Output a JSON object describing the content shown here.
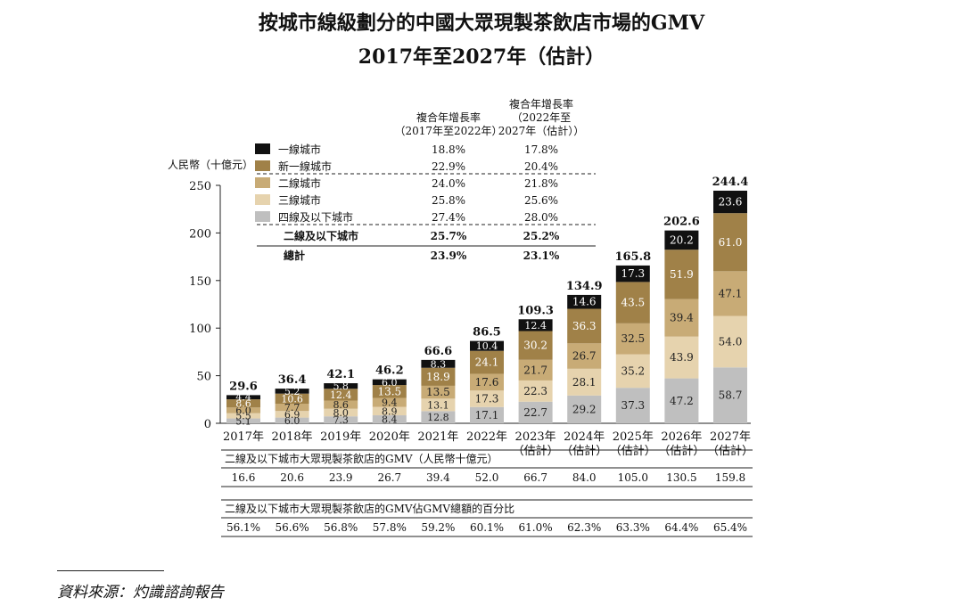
{
  "title_line1": "按城市線級劃分的中國大眾現製茶飲店市場的GMV",
  "title_line2": "2017年至2027年（估計）",
  "source": "資料來源：灼識諮詢報告",
  "colors": {
    "tier1": "#111111",
    "newtier1": "#a08148",
    "tier2": "#c8ab76",
    "tier3": "#e6d3ae",
    "tier4": "#bfbfbf",
    "grid": "#d9d9d9",
    "axis": "#222222"
  },
  "chart_data": {
    "type": "bar",
    "stacked": true,
    "ylabel": "人民幣（十億元）",
    "ylim": [
      0,
      250
    ],
    "yticks": [
      0,
      50,
      100,
      150,
      200,
      250
    ],
    "categories": [
      [
        "2017年"
      ],
      [
        "2018年"
      ],
      [
        "2019年"
      ],
      [
        "2020年"
      ],
      [
        "2021年"
      ],
      [
        "2022年"
      ],
      [
        "2023年",
        "（估計）"
      ],
      [
        "2024年",
        "（估計）"
      ],
      [
        "2025年",
        "（估計）"
      ],
      [
        "2026年",
        "（估計）"
      ],
      [
        "2027年",
        "（估計）"
      ]
    ],
    "series": [
      {
        "name": "四線及以下城市",
        "color_key": "tier4",
        "values": [
          5.1,
          6.0,
          7.3,
          8.4,
          12.8,
          17.1,
          22.7,
          29.2,
          37.3,
          47.2,
          58.7
        ]
      },
      {
        "name": "三線城市",
        "color_key": "tier3",
        "values": [
          5.5,
          6.9,
          8.0,
          8.9,
          13.1,
          17.3,
          22.3,
          28.1,
          35.2,
          43.9,
          54.0
        ]
      },
      {
        "name": "二線城市",
        "color_key": "tier2",
        "values": [
          6.0,
          7.7,
          8.6,
          9.4,
          13.5,
          17.6,
          21.7,
          26.7,
          32.5,
          39.4,
          47.1
        ]
      },
      {
        "name": "新一線城市",
        "color_key": "newtier1",
        "values": [
          8.6,
          10.6,
          12.4,
          13.5,
          18.9,
          24.1,
          30.2,
          36.3,
          43.5,
          51.9,
          61.0
        ]
      },
      {
        "name": "一線城市",
        "color_key": "tier1",
        "values": [
          4.4,
          5.2,
          5.8,
          6.0,
          8.3,
          10.4,
          12.4,
          14.6,
          17.3,
          20.2,
          23.6
        ]
      }
    ],
    "totals": [
      29.6,
      36.4,
      42.1,
      46.2,
      66.6,
      86.5,
      109.3,
      134.9,
      165.8,
      202.6,
      244.4
    ],
    "legend": {
      "header_col1": [
        "複合年增長率",
        "（2017年至2022年）"
      ],
      "header_col2": [
        "複合年增長率",
        "（2022年至",
        "2027年（估計））"
      ],
      "rows": [
        {
          "name": "一線城市",
          "color_key": "tier1",
          "cagr1": "18.8%",
          "cagr2": "17.8%"
        },
        {
          "name": "新一線城市",
          "color_key": "newtier1",
          "cagr1": "22.9%",
          "cagr2": "20.4%"
        },
        {
          "name": "二線城市",
          "color_key": "tier2",
          "cagr1": "24.0%",
          "cagr2": "21.8%"
        },
        {
          "name": "三線城市",
          "color_key": "tier3",
          "cagr1": "25.8%",
          "cagr2": "25.6%"
        },
        {
          "name": "四線及以下城市",
          "color_key": "tier4",
          "cagr1": "27.4%",
          "cagr2": "28.0%"
        }
      ],
      "summary_rows": [
        {
          "name": "二線及以下城市",
          "cagr1": "25.7%",
          "cagr2": "25.2%"
        },
        {
          "name": "總計",
          "cagr1": "23.9%",
          "cagr2": "23.1%"
        }
      ]
    },
    "tables": [
      {
        "title": "二線及以下城市大眾現製茶飲店的GMV（人民幣十億元）",
        "values": [
          "16.6",
          "20.6",
          "23.9",
          "26.7",
          "39.4",
          "52.0",
          "66.7",
          "84.0",
          "105.0",
          "130.5",
          "159.8"
        ]
      },
      {
        "title": "二線及以下城市大眾現製茶飲店的GMV佔GMV總額的百分比",
        "values": [
          "56.1%",
          "56.6%",
          "56.8%",
          "57.8%",
          "59.2%",
          "60.1%",
          "61.0%",
          "62.3%",
          "63.3%",
          "64.4%",
          "65.4%"
        ]
      }
    ]
  }
}
